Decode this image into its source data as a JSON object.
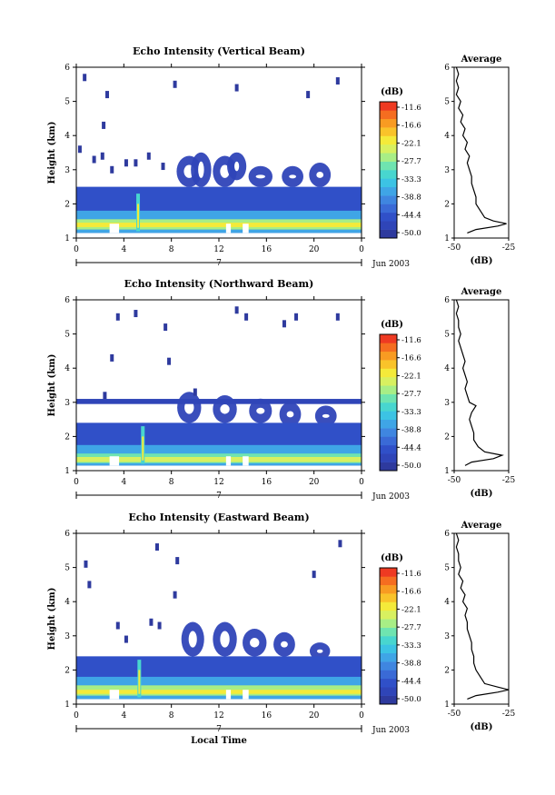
{
  "colorbar_colors": [
    "#2e3a9e",
    "#2f45b8",
    "#3050c8",
    "#3a6ad6",
    "#3f86e0",
    "#3fa5e6",
    "#3cc3e4",
    "#48d6cf",
    "#6fe4b0",
    "#a8ee86",
    "#d8f060",
    "#f4ea3a",
    "#f9c32a",
    "#f89b22",
    "#f56d20",
    "#ee3a22"
  ],
  "chart_data": [
    {
      "type": "heatmap",
      "title": "Echo Intensity (Vertical Beam)",
      "xlabel": "",
      "ylabel": "Height (km)",
      "x_ticks": [
        "0",
        "4",
        "8",
        "12",
        "16",
        "20",
        "0"
      ],
      "x_range": [
        0,
        24
      ],
      "y_ticks": [
        "1",
        "2",
        "3",
        "4",
        "5",
        "6"
      ],
      "y_range": [
        1,
        6
      ],
      "date_marker": "7",
      "date_label": "Jun 2003",
      "colorbar_unit": "(dB)",
      "colorbar_ticks": [
        "-11.6",
        "-16.6",
        "-22.1",
        "-27.7",
        "-33.3",
        "-38.8",
        "-44.4",
        "-50.0"
      ],
      "layers": [
        {
          "bottom": 1.15,
          "top": 2.5,
          "level": 2
        },
        {
          "bottom": 1.15,
          "top": 1.8,
          "level": 5
        },
        {
          "bottom": 1.25,
          "top": 1.55,
          "level": 9
        },
        {
          "bottom": 1.32,
          "top": 1.45,
          "level": 11
        }
      ],
      "clouds": [
        [
          9.5,
          2.6,
          3.3,
          1.2
        ],
        [
          12.5,
          2.6,
          3.3,
          1.1
        ],
        [
          15.5,
          2.6,
          3.0,
          1.1
        ],
        [
          18.2,
          2.6,
          3.0,
          0.9
        ],
        [
          20.5,
          2.6,
          3.1,
          0.9
        ],
        [
          10.5,
          2.6,
          3.4,
          0.8
        ],
        [
          13.5,
          2.8,
          3.4,
          0.7
        ]
      ],
      "scatter": [
        [
          0.7,
          5.7
        ],
        [
          2.3,
          4.3
        ],
        [
          5.0,
          3.2
        ],
        [
          7.3,
          3.1
        ],
        [
          2.2,
          3.4
        ],
        [
          19.5,
          5.2
        ],
        [
          22.0,
          5.6
        ],
        [
          13.5,
          5.4
        ],
        [
          2.6,
          5.2
        ],
        [
          0.3,
          3.6
        ],
        [
          8.3,
          5.5
        ],
        [
          3.0,
          3.0
        ],
        [
          1.5,
          3.3
        ],
        [
          4.2,
          3.2
        ],
        [
          6.1,
          3.4
        ]
      ],
      "spike_x": 5.2,
      "avg_title": "Average",
      "avg_xlabel": "(dB)",
      "avg_x_ticks": [
        "-50",
        "-25"
      ],
      "avg_x_range": [
        -50,
        -25
      ],
      "avg_y_ticks": [
        "1",
        "2",
        "3",
        "4",
        "5",
        "6"
      ],
      "avg_profile": [
        [
          -49,
          6.0
        ],
        [
          -48,
          5.8
        ],
        [
          -49,
          5.6
        ],
        [
          -48,
          5.4
        ],
        [
          -49,
          5.2
        ],
        [
          -47,
          5.0
        ],
        [
          -48,
          4.8
        ],
        [
          -46,
          4.6
        ],
        [
          -47,
          4.4
        ],
        [
          -45,
          4.2
        ],
        [
          -46,
          4.0
        ],
        [
          -44,
          3.8
        ],
        [
          -45,
          3.6
        ],
        [
          -43,
          3.4
        ],
        [
          -44,
          3.2
        ],
        [
          -43,
          3.0
        ],
        [
          -42,
          2.8
        ],
        [
          -42,
          2.6
        ],
        [
          -41,
          2.4
        ],
        [
          -40,
          2.2
        ],
        [
          -40,
          2.0
        ],
        [
          -38,
          1.8
        ],
        [
          -36,
          1.6
        ],
        [
          -32,
          1.5
        ],
        [
          -26,
          1.42
        ],
        [
          -30,
          1.35
        ],
        [
          -40,
          1.25
        ],
        [
          -44,
          1.15
        ]
      ]
    },
    {
      "type": "heatmap",
      "title": "Echo Intensity (Northward Beam)",
      "xlabel": "",
      "ylabel": "Height (km)",
      "x_ticks": [
        "0",
        "4",
        "8",
        "12",
        "16",
        "20",
        "0"
      ],
      "x_range": [
        0,
        24
      ],
      "y_ticks": [
        "1",
        "2",
        "3",
        "4",
        "5",
        "6"
      ],
      "y_range": [
        1,
        6
      ],
      "date_marker": "7",
      "date_label": "Jun 2003",
      "colorbar_unit": "(dB)",
      "colorbar_ticks": [
        "-11.6",
        "-16.6",
        "-22.1",
        "-27.7",
        "-33.3",
        "-38.8",
        "-44.4",
        "-50.0"
      ],
      "layers": [
        {
          "bottom": 1.15,
          "top": 2.4,
          "level": 2
        },
        {
          "bottom": 1.15,
          "top": 1.75,
          "level": 5
        },
        {
          "bottom": 1.22,
          "top": 1.5,
          "level": 8
        },
        {
          "bottom": 1.25,
          "top": 1.4,
          "level": 10
        }
      ],
      "band": {
        "bottom": 2.95,
        "top": 3.1,
        "level": 1
      },
      "clouds": [
        [
          9.5,
          2.5,
          3.2,
          1.1
        ],
        [
          12.5,
          2.5,
          3.1,
          1.1
        ],
        [
          15.5,
          2.5,
          3.0,
          1.0
        ],
        [
          18.0,
          2.4,
          2.9,
          0.9
        ],
        [
          21.0,
          2.4,
          2.8,
          0.9
        ]
      ],
      "scatter": [
        [
          3.5,
          5.5
        ],
        [
          5.0,
          5.6
        ],
        [
          7.5,
          5.2
        ],
        [
          13.5,
          5.7
        ],
        [
          14.3,
          5.5
        ],
        [
          17.5,
          5.3
        ],
        [
          18.5,
          5.5
        ],
        [
          22.0,
          5.5
        ],
        [
          7.8,
          4.2
        ],
        [
          3.0,
          4.3
        ],
        [
          10.0,
          3.3
        ],
        [
          2.4,
          3.2
        ]
      ],
      "spike_x": 5.6,
      "avg_title": "Average",
      "avg_xlabel": "(dB)",
      "avg_x_ticks": [
        "-50",
        "-25"
      ],
      "avg_x_range": [
        -50,
        -25
      ],
      "avg_y_ticks": [
        "1",
        "2",
        "3",
        "4",
        "5",
        "6"
      ],
      "avg_profile": [
        [
          -49,
          6.0
        ],
        [
          -48,
          5.8
        ],
        [
          -49,
          5.6
        ],
        [
          -48,
          5.4
        ],
        [
          -48,
          5.2
        ],
        [
          -47,
          5.0
        ],
        [
          -48,
          4.8
        ],
        [
          -47,
          4.6
        ],
        [
          -46,
          4.4
        ],
        [
          -45,
          4.2
        ],
        [
          -46,
          4.0
        ],
        [
          -45,
          3.8
        ],
        [
          -44,
          3.6
        ],
        [
          -45,
          3.4
        ],
        [
          -44,
          3.2
        ],
        [
          -43,
          3.0
        ],
        [
          -40,
          2.9
        ],
        [
          -42,
          2.7
        ],
        [
          -43,
          2.5
        ],
        [
          -42,
          2.3
        ],
        [
          -41,
          2.1
        ],
        [
          -41,
          1.9
        ],
        [
          -39,
          1.7
        ],
        [
          -36,
          1.55
        ],
        [
          -28,
          1.45
        ],
        [
          -32,
          1.35
        ],
        [
          -42,
          1.25
        ],
        [
          -45,
          1.15
        ]
      ]
    },
    {
      "type": "heatmap",
      "title": "Echo Intensity (Eastward Beam)",
      "xlabel": "Local Time",
      "ylabel": "Height (km)",
      "x_ticks": [
        "0",
        "4",
        "8",
        "12",
        "16",
        "20",
        "0"
      ],
      "x_range": [
        0,
        24
      ],
      "y_ticks": [
        "1",
        "2",
        "3",
        "4",
        "5",
        "6"
      ],
      "y_range": [
        1,
        6
      ],
      "date_marker": "7",
      "date_label": "Jun 2003",
      "colorbar_unit": "(dB)",
      "colorbar_ticks": [
        "-11.6",
        "-16.6",
        "-22.1",
        "-27.7",
        "-33.3",
        "-38.8",
        "-44.4",
        "-50.0"
      ],
      "layers": [
        {
          "bottom": 1.15,
          "top": 2.4,
          "level": 2
        },
        {
          "bottom": 1.15,
          "top": 1.8,
          "level": 5
        },
        {
          "bottom": 1.25,
          "top": 1.55,
          "level": 9
        },
        {
          "bottom": 1.3,
          "top": 1.42,
          "level": 11
        }
      ],
      "clouds": [
        [
          9.8,
          2.5,
          3.3,
          1.0
        ],
        [
          12.5,
          2.5,
          3.3,
          1.1
        ],
        [
          15.0,
          2.5,
          3.1,
          1.1
        ],
        [
          17.5,
          2.5,
          3.0,
          0.9
        ],
        [
          20.5,
          2.4,
          2.7,
          0.8
        ]
      ],
      "scatter": [
        [
          0.8,
          5.1
        ],
        [
          1.1,
          4.5
        ],
        [
          3.5,
          3.3
        ],
        [
          6.8,
          5.6
        ],
        [
          8.5,
          5.2
        ],
        [
          8.3,
          4.2
        ],
        [
          7.0,
          3.3
        ],
        [
          4.2,
          2.9
        ],
        [
          20.0,
          4.8
        ],
        [
          22.2,
          5.7
        ],
        [
          6.3,
          3.4
        ]
      ],
      "spike_x": 5.3,
      "avg_title": "Average",
      "avg_xlabel": "(dB)",
      "avg_x_ticks": [
        "-50",
        "-25"
      ],
      "avg_x_range": [
        -50,
        -25
      ],
      "avg_y_ticks": [
        "1",
        "2",
        "3",
        "4",
        "5",
        "6"
      ],
      "avg_profile": [
        [
          -49,
          6.0
        ],
        [
          -48,
          5.8
        ],
        [
          -49,
          5.6
        ],
        [
          -48,
          5.4
        ],
        [
          -48,
          5.2
        ],
        [
          -47,
          5.0
        ],
        [
          -48,
          4.8
        ],
        [
          -46,
          4.6
        ],
        [
          -47,
          4.4
        ],
        [
          -45,
          4.2
        ],
        [
          -46,
          4.0
        ],
        [
          -44,
          3.8
        ],
        [
          -45,
          3.6
        ],
        [
          -44,
          3.4
        ],
        [
          -44,
          3.2
        ],
        [
          -43,
          3.0
        ],
        [
          -42,
          2.8
        ],
        [
          -42,
          2.6
        ],
        [
          -41,
          2.4
        ],
        [
          -41,
          2.2
        ],
        [
          -40,
          2.0
        ],
        [
          -38,
          1.8
        ],
        [
          -36,
          1.6
        ],
        [
          -30,
          1.5
        ],
        [
          -25,
          1.42
        ],
        [
          -30,
          1.35
        ],
        [
          -40,
          1.25
        ],
        [
          -44,
          1.15
        ]
      ]
    }
  ]
}
